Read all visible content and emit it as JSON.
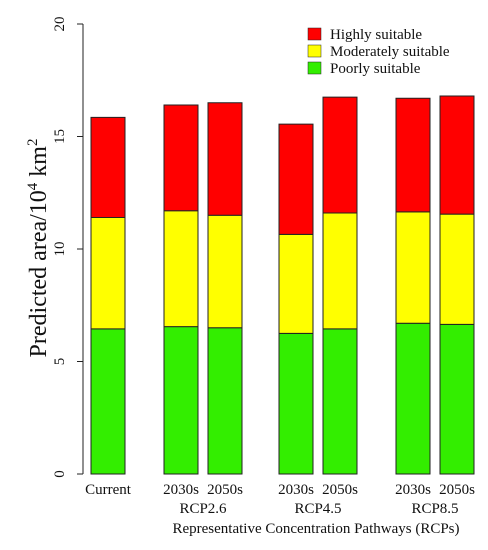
{
  "chart_data": {
    "type": "bar",
    "stacked": true,
    "categories": [
      "Current",
      "2030s",
      "2050s",
      "2030s",
      "2050s",
      "2030s",
      "2050s"
    ],
    "groups": [
      {
        "label": "",
        "members": [
          0
        ]
      },
      {
        "label": "RCP2.6",
        "members": [
          1,
          2
        ]
      },
      {
        "label": "RCP4.5",
        "members": [
          3,
          4
        ]
      },
      {
        "label": "RCP8.5",
        "members": [
          5,
          6
        ]
      }
    ],
    "series": [
      {
        "name": "Poorly suitable",
        "color": "#33ee00",
        "values": [
          6.45,
          6.55,
          6.5,
          6.25,
          6.45,
          6.7,
          6.65
        ]
      },
      {
        "name": "Moderately suitable",
        "color": "#ffff00",
        "values": [
          4.95,
          5.15,
          5.0,
          4.4,
          5.15,
          4.95,
          4.9
        ]
      },
      {
        "name": "Highly suitable",
        "color": "#ff0000",
        "values": [
          4.45,
          4.7,
          5.0,
          4.9,
          5.15,
          5.05,
          5.25
        ]
      }
    ],
    "legend_order": [
      "Highly suitable",
      "Moderately suitable",
      "Poorly suitable"
    ],
    "legend_position": "top-right",
    "ylim": [
      0,
      20
    ],
    "yticks": [
      "0",
      "5",
      "10",
      "15",
      "20"
    ],
    "ylabel_main": "Predicted area/10",
    "ylabel_sup1": "4",
    "ylabel_unit": " km",
    "ylabel_sup2": "2",
    "xlabel": "Representative Concentration Pathways (RCPs)",
    "grid": false
  }
}
